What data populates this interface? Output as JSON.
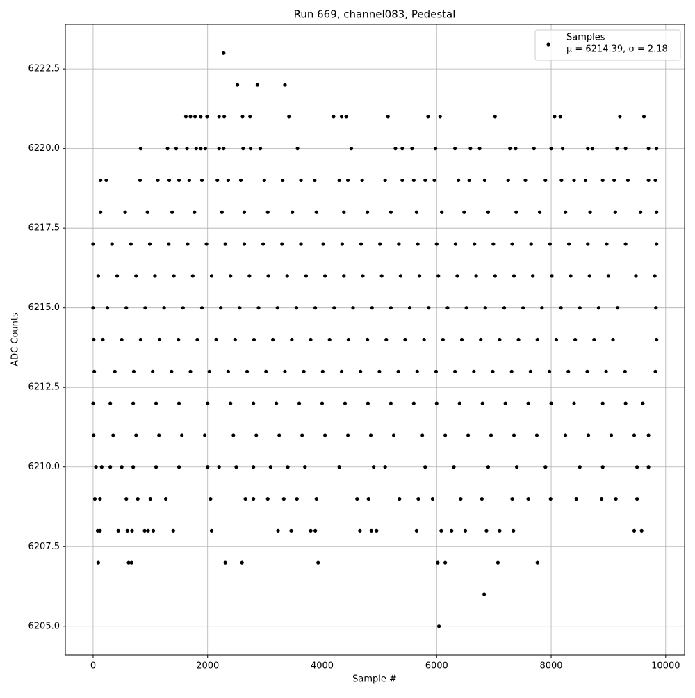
{
  "chart_data": {
    "type": "scatter",
    "title": "Run 669, channel083, Pedestal",
    "xlabel": "Sample #",
    "ylabel": "ADC Counts",
    "xlim": [
      -485,
      10330
    ],
    "ylim": [
      6204.1,
      6223.9
    ],
    "xticks": [
      0,
      2000,
      4000,
      6000,
      8000,
      10000
    ],
    "yticks": [
      {
        "value": 6205,
        "label": "6205.0"
      },
      6207.5,
      {
        "value": 6210,
        "label": "6210.0"
      },
      6212.5,
      {
        "value": 6215,
        "label": "6215.0"
      },
      6217.5,
      {
        "value": 6220,
        "label": "6220.0"
      },
      6222.5
    ],
    "grid": true,
    "legend": "upper right",
    "legend_stats": "μ = 6214.39, σ = 2.18",
    "series": [
      {
        "name": "Samples",
        "color": "#000000",
        "x": [
          2280,
          2520,
          2870,
          3350,
          1620,
          1700,
          1780,
          1880,
          1990,
          2200,
          2290,
          2610,
          2740,
          3420,
          4200,
          4340,
          4420,
          5150,
          5850,
          6060,
          7020,
          8060,
          8160,
          9200,
          9620,
          830,
          1300,
          1450,
          1640,
          1800,
          1880,
          1960,
          2200,
          2280,
          2620,
          2750,
          2920,
          3570,
          4510,
          5280,
          5400,
          5570,
          5980,
          6320,
          6590,
          6750,
          7280,
          7380,
          7700,
          8000,
          8200,
          8640,
          8720,
          9150,
          9300,
          9700,
          9840,
          130,
          230,
          820,
          1130,
          1330,
          1500,
          1680,
          1900,
          2170,
          2360,
          2580,
          2990,
          3310,
          3630,
          3870,
          4300,
          4450,
          4700,
          5100,
          5400,
          5600,
          5800,
          5960,
          6380,
          6570,
          6840,
          7250,
          7550,
          7900,
          8180,
          8400,
          8600,
          8900,
          9100,
          9340,
          9700,
          9820,
          130,
          560,
          950,
          1380,
          1770,
          2250,
          2640,
          3050,
          3480,
          3900,
          4380,
          4790,
          5200,
          5650,
          6090,
          6480,
          6900,
          7390,
          7800,
          8250,
          8680,
          9120,
          9560,
          9840,
          0,
          330,
          660,
          990,
          1320,
          1650,
          1980,
          2310,
          2640,
          2970,
          3300,
          3630,
          4020,
          4350,
          4680,
          5010,
          5340,
          5670,
          6000,
          6330,
          6660,
          6990,
          7320,
          7650,
          7980,
          8310,
          8640,
          8970,
          9300,
          9840,
          90,
          420,
          750,
          1080,
          1410,
          1740,
          2070,
          2400,
          2730,
          3060,
          3390,
          3720,
          4050,
          4380,
          4710,
          5040,
          5370,
          5700,
          6030,
          6360,
          6690,
          7020,
          7350,
          7680,
          8010,
          8340,
          8670,
          9000,
          9480,
          9810,
          0,
          250,
          580,
          910,
          1240,
          1570,
          1900,
          2230,
          2560,
          2890,
          3220,
          3550,
          3880,
          4210,
          4540,
          4870,
          5200,
          5530,
          5860,
          6190,
          6520,
          6850,
          7180,
          7510,
          7840,
          8170,
          8500,
          8830,
          9160,
          9830,
          10,
          170,
          500,
          830,
          1160,
          1490,
          1820,
          2150,
          2480,
          2810,
          3140,
          3470,
          3800,
          4130,
          4460,
          4790,
          5120,
          5450,
          5780,
          6110,
          6440,
          6770,
          7100,
          7430,
          7760,
          8090,
          8420,
          8750,
          9080,
          9840,
          20,
          380,
          710,
          1040,
          1370,
          1700,
          2030,
          2360,
          2690,
          3020,
          3350,
          3680,
          4010,
          4340,
          4670,
          5000,
          5330,
          5660,
          5990,
          6320,
          6650,
          6980,
          7310,
          7640,
          7970,
          8300,
          8630,
          8960,
          9290,
          9820,
          0,
          300,
          700,
          1100,
          1500,
          2000,
          2400,
          2800,
          3200,
          3600,
          4000,
          4400,
          4800,
          5200,
          5600,
          6000,
          6400,
          6800,
          7200,
          7600,
          8000,
          8400,
          8900,
          9300,
          9600,
          10,
          350,
          750,
          1150,
          1550,
          1950,
          2450,
          2850,
          3250,
          3650,
          4050,
          4450,
          4850,
          5250,
          5750,
          6150,
          6550,
          6950,
          7350,
          7750,
          8250,
          8650,
          9050,
          9450,
          9700,
          50,
          150,
          300,
          500,
          700,
          1100,
          1500,
          2000,
          2200,
          2500,
          2800,
          3100,
          3400,
          3700,
          4300,
          4900,
          5100,
          5800,
          6300,
          6900,
          7400,
          7900,
          8500,
          8900,
          9500,
          9700,
          30,
          120,
          580,
          780,
          1000,
          1270,
          2050,
          2660,
          2800,
          3050,
          3330,
          3560,
          3900,
          4610,
          4810,
          5350,
          5680,
          5930,
          6420,
          6790,
          7320,
          7600,
          7990,
          8440,
          8880,
          9130,
          9500,
          80,
          120,
          440,
          600,
          680,
          900,
          960,
          1050,
          1400,
          2070,
          3230,
          3460,
          3800,
          3880,
          4660,
          4860,
          4950,
          5650,
          6080,
          6260,
          6500,
          6870,
          7100,
          7340,
          9450,
          9580,
          90,
          620,
          670,
          2310,
          2600,
          3930,
          6020,
          6150,
          7070,
          7760,
          6830,
          6040
        ],
        "values": [
          6223,
          6222,
          6222,
          6222,
          6221,
          6221,
          6221,
          6221,
          6221,
          6221,
          6221,
          6221,
          6221,
          6221,
          6221,
          6221,
          6221,
          6221,
          6221,
          6221,
          6221,
          6221,
          6221,
          6221,
          6221,
          6220,
          6220,
          6220,
          6220,
          6220,
          6220,
          6220,
          6220,
          6220,
          6220,
          6220,
          6220,
          6220,
          6220,
          6220,
          6220,
          6220,
          6220,
          6220,
          6220,
          6220,
          6220,
          6220,
          6220,
          6220,
          6220,
          6220,
          6220,
          6220,
          6220,
          6220,
          6220,
          6219,
          6219,
          6219,
          6219,
          6219,
          6219,
          6219,
          6219,
          6219,
          6219,
          6219,
          6219,
          6219,
          6219,
          6219,
          6219,
          6219,
          6219,
          6219,
          6219,
          6219,
          6219,
          6219,
          6219,
          6219,
          6219,
          6219,
          6219,
          6219,
          6219,
          6219,
          6219,
          6219,
          6219,
          6219,
          6219,
          6219,
          6218,
          6218,
          6218,
          6218,
          6218,
          6218,
          6218,
          6218,
          6218,
          6218,
          6218,
          6218,
          6218,
          6218,
          6218,
          6218,
          6218,
          6218,
          6218,
          6218,
          6218,
          6218,
          6218,
          6218,
          6217,
          6217,
          6217,
          6217,
          6217,
          6217,
          6217,
          6217,
          6217,
          6217,
          6217,
          6217,
          6217,
          6217,
          6217,
          6217,
          6217,
          6217,
          6217,
          6217,
          6217,
          6217,
          6217,
          6217,
          6217,
          6217,
          6217,
          6217,
          6217,
          6217,
          6216,
          6216,
          6216,
          6216,
          6216,
          6216,
          6216,
          6216,
          6216,
          6216,
          6216,
          6216,
          6216,
          6216,
          6216,
          6216,
          6216,
          6216,
          6216,
          6216,
          6216,
          6216,
          6216,
          6216,
          6216,
          6216,
          6216,
          6216,
          6216,
          6216,
          6215,
          6215,
          6215,
          6215,
          6215,
          6215,
          6215,
          6215,
          6215,
          6215,
          6215,
          6215,
          6215,
          6215,
          6215,
          6215,
          6215,
          6215,
          6215,
          6215,
          6215,
          6215,
          6215,
          6215,
          6215,
          6215,
          6215,
          6215,
          6215,
          6215,
          6214,
          6214,
          6214,
          6214,
          6214,
          6214,
          6214,
          6214,
          6214,
          6214,
          6214,
          6214,
          6214,
          6214,
          6214,
          6214,
          6214,
          6214,
          6214,
          6214,
          6214,
          6214,
          6214,
          6214,
          6214,
          6214,
          6214,
          6214,
          6214,
          6214,
          6213,
          6213,
          6213,
          6213,
          6213,
          6213,
          6213,
          6213,
          6213,
          6213,
          6213,
          6213,
          6213,
          6213,
          6213,
          6213,
          6213,
          6213,
          6213,
          6213,
          6213,
          6213,
          6213,
          6213,
          6213,
          6213,
          6213,
          6213,
          6213,
          6213,
          6212,
          6212,
          6212,
          6212,
          6212,
          6212,
          6212,
          6212,
          6212,
          6212,
          6212,
          6212,
          6212,
          6212,
          6212,
          6212,
          6212,
          6212,
          6212,
          6212,
          6212,
          6212,
          6212,
          6212,
          6212,
          6211,
          6211,
          6211,
          6211,
          6211,
          6211,
          6211,
          6211,
          6211,
          6211,
          6211,
          6211,
          6211,
          6211,
          6211,
          6211,
          6211,
          6211,
          6211,
          6211,
          6211,
          6211,
          6211,
          6211,
          6211,
          6210,
          6210,
          6210,
          6210,
          6210,
          6210,
          6210,
          6210,
          6210,
          6210,
          6210,
          6210,
          6210,
          6210,
          6210,
          6210,
          6210,
          6210,
          6210,
          6210,
          6210,
          6210,
          6210,
          6210,
          6210,
          6210,
          6209,
          6209,
          6209,
          6209,
          6209,
          6209,
          6209,
          6209,
          6209,
          6209,
          6209,
          6209,
          6209,
          6209,
          6209,
          6209,
          6209,
          6209,
          6209,
          6209,
          6209,
          6209,
          6209,
          6209,
          6209,
          6209,
          6209,
          6208,
          6208,
          6208,
          6208,
          6208,
          6208,
          6208,
          6208,
          6208,
          6208,
          6208,
          6208,
          6208,
          6208,
          6208,
          6208,
          6208,
          6208,
          6208,
          6208,
          6208,
          6208,
          6208,
          6208,
          6208,
          6208,
          6207,
          6207,
          6207,
          6207,
          6207,
          6207,
          6207,
          6207,
          6207,
          6207,
          6206,
          6205
        ]
      }
    ]
  }
}
